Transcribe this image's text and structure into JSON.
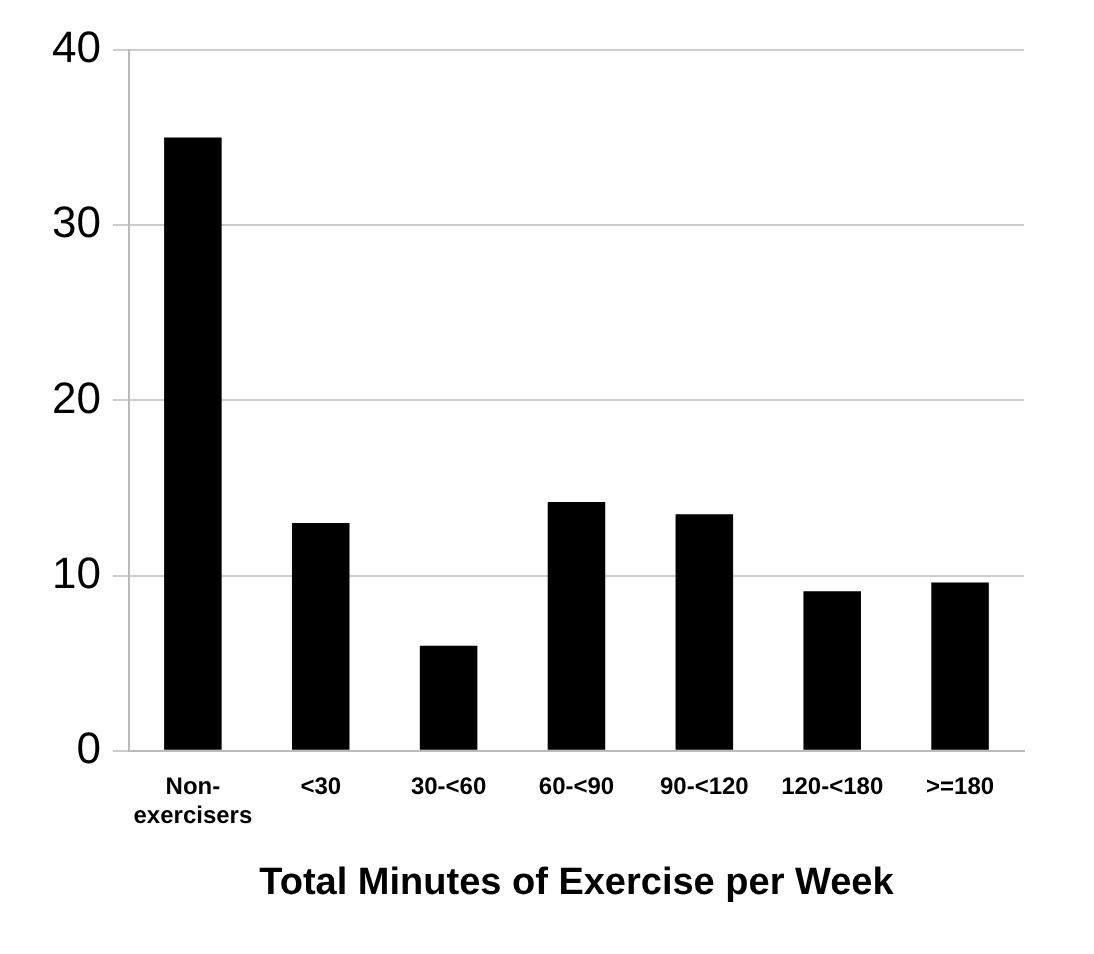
{
  "chart_data": {
    "type": "bar",
    "xlabel": "Total Minutes of Exercise per Week",
    "categories": [
      "Non-exercisers",
      "<30",
      "30-<60",
      "60-<90",
      "90-<120",
      "120-<180",
      ">=180"
    ],
    "values": [
      35,
      13,
      6,
      14.2,
      13.5,
      9.1,
      9.6
    ],
    "color": "#000000",
    "ylim": [
      0,
      40
    ],
    "yticks": [
      0,
      10,
      20,
      30,
      40
    ],
    "grid": "y",
    "legend": false
  }
}
